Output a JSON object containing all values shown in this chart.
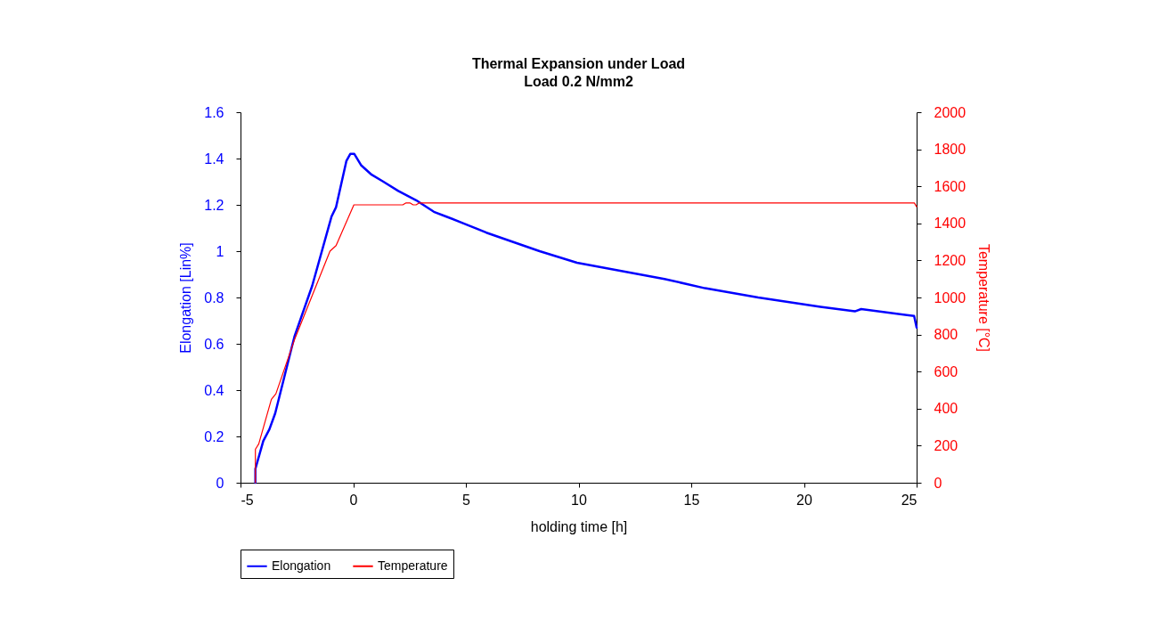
{
  "chart_data": {
    "type": "line",
    "title": "Thermal Expansion under Load",
    "subtitle": "Load 0.2 N/mm2",
    "xlabel": "holding time [h]",
    "ylabel": "Elongation  [Lin%]",
    "y2label": "Temperature [°C]",
    "xlim": [
      -5,
      25
    ],
    "xticks": [
      -5,
      0,
      5,
      10,
      15,
      20,
      25
    ],
    "ylim": [
      0,
      1.6
    ],
    "yticks": [
      0,
      0.2,
      0.4,
      0.6,
      0.8,
      1,
      1.2,
      1.4,
      1.6
    ],
    "y2lim": [
      0,
      2000
    ],
    "y2ticks": [
      0,
      200,
      400,
      600,
      800,
      1000,
      1200,
      1400,
      1600,
      1800,
      2000
    ],
    "grid": false,
    "legend": "bottom",
    "marker": "none",
    "line_style": "solid",
    "series": [
      {
        "name": "Elongation",
        "color": "#0000ff",
        "x": [
          -4.34,
          -4.34,
          -3.99,
          -3.72,
          -3.46,
          -2.61,
          -1.82,
          -0.96,
          -0.76,
          -0.3,
          -0.13,
          0.05,
          0.36,
          0.82,
          1.34,
          2.0,
          2.79,
          3.58,
          4.11,
          4.9,
          5.91,
          8.27,
          9.93,
          13.81,
          15.61,
          17.97,
          20.73,
          22.26,
          22.54,
          24.89,
          25
        ],
        "values": [
          0,
          0.06,
          0.18,
          0.23,
          0.3,
          0.63,
          0.85,
          1.15,
          1.19,
          1.39,
          1.42,
          1.42,
          1.37,
          1.33,
          1.3,
          1.26,
          1.22,
          1.17,
          1.15,
          1.12,
          1.08,
          1.0,
          0.95,
          0.88,
          0.84,
          0.8,
          0.76,
          0.74,
          0.75,
          0.72,
          0.67
        ]
      },
      {
        "name": "Temperature",
        "color": "#ff0000",
        "axis": "y2",
        "x": [
          -4.34,
          -4.34,
          -4.19,
          -3.63,
          -3.43,
          -2.61,
          -1.03,
          -0.76,
          0.03,
          2.2,
          2.33,
          2.53,
          2.66,
          2.79,
          2.92,
          24.9,
          25
        ],
        "values": [
          0,
          180,
          210,
          450,
          480,
          770,
          1250,
          1280,
          1500,
          1500,
          1510,
          1510,
          1500,
          1500,
          1510,
          1510,
          1490
        ]
      }
    ]
  }
}
